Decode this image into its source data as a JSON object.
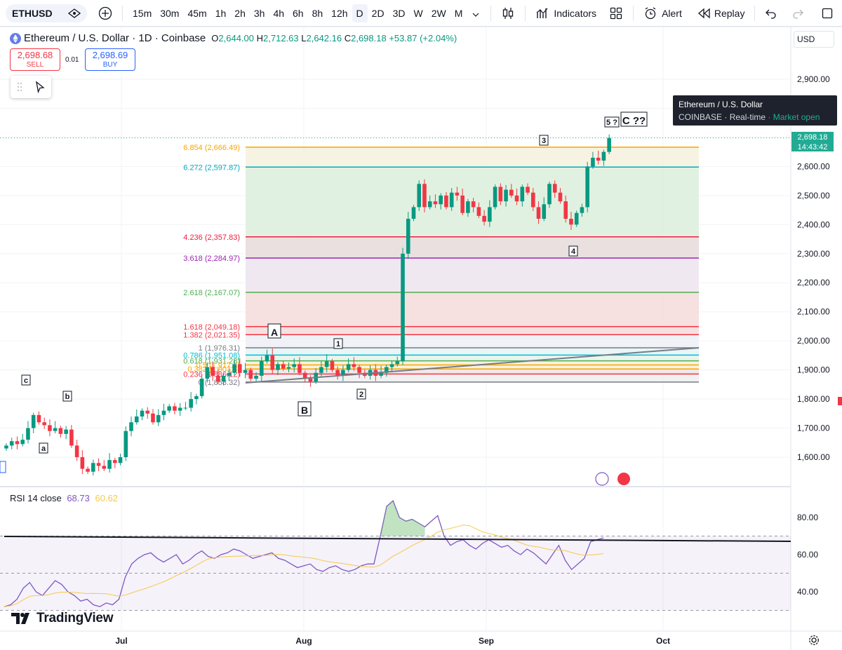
{
  "toolbar": {
    "symbol": "ETHUSD",
    "intervals": [
      "15m",
      "30m",
      "45m",
      "1h",
      "2h",
      "3h",
      "4h",
      "6h",
      "8h",
      "12h",
      "D",
      "2D",
      "3D",
      "W",
      "2W",
      "M"
    ],
    "active_interval": "D",
    "indicators_label": "Indicators",
    "alert_label": "Alert",
    "replay_label": "Replay"
  },
  "legend": {
    "title": "Ethereum / U.S. Dollar · 1D · Coinbase",
    "o_label": "O",
    "o": "2,644.00",
    "h_label": "H",
    "h": "2,712.63",
    "l_label": "L",
    "l": "2,642.16",
    "c_label": "C",
    "c": "2,698.18",
    "change": "+53.87 (+2.04%)"
  },
  "trade": {
    "sell_price": "2,698.68",
    "sell_label": "SELL",
    "spread": "0.01",
    "buy_price": "2,698.69",
    "buy_label": "BUY"
  },
  "tooltip": {
    "title": "Ethereum / U.S. Dollar",
    "exchange": "COINBASE",
    "feed": "Real-time",
    "status": "Market open"
  },
  "price_axis": {
    "currency": "USD",
    "labels": [
      "2,900.00",
      "2,800.00",
      "2,700.00",
      "2,600.00",
      "2,500.00",
      "2,400.00",
      "2,300.00",
      "2,200.00",
      "2,100.00",
      "2,000.00",
      "1,900.00",
      "1,800.00",
      "1,700.00",
      "1,600.00"
    ],
    "last_price": "2,698.18",
    "countdown": "14:43:42"
  },
  "time_axis": {
    "labels": [
      "Jul",
      "Aug",
      "Sep",
      "Oct"
    ]
  },
  "fib_levels": [
    {
      "label": "6.854 (2,666.49)",
      "color": "#f7a600"
    },
    {
      "label": "6.272 (2,597.87)",
      "color": "#00acc1"
    },
    {
      "label": "4.236 (2,357.83)",
      "color": "#e91e3e"
    },
    {
      "label": "3.618 (2,284.97)",
      "color": "#9c27b0"
    },
    {
      "label": "2.618 (2,167.07)",
      "color": "#4caf50"
    },
    {
      "label": "1.618 (2,049.18)",
      "color": "#f23645"
    },
    {
      "label": "1.382 (2,021.35)",
      "color": "#f23645"
    },
    {
      "label": "1 (1,976.31)",
      "color": "#787b86"
    },
    {
      "label": "0.786 (1,951.08)",
      "color": "#00bcd4"
    },
    {
      "label": "0.618 (1,931.28)",
      "color": "#4caf50"
    },
    {
      "label": "0.5 (1,917.3)",
      "color": "#f7a600"
    },
    {
      "label": "0.382 (1,903.3)",
      "color": "#f7a600"
    },
    {
      "label": "0.236 (1,886.12)",
      "color": "#f23645"
    },
    {
      "label": "0 (1,858.32)",
      "color": "#787b86"
    }
  ],
  "wave_labels": {
    "w1": "1",
    "w2": "2",
    "w3": "3",
    "w4": "4",
    "w5": "5 ?",
    "a_small": "a",
    "b_small": "b",
    "c_small": "c",
    "A": "A",
    "B": "B",
    "C": "C ??"
  },
  "rsi": {
    "title": "RSI 14 close",
    "value": "68.73",
    "ma_value": "60.62",
    "axis_labels": [
      "80.00",
      "60.00",
      "40.00"
    ]
  },
  "branding": {
    "logo_text": "TradingView"
  },
  "colors": {
    "up": "#089981",
    "down": "#f23645",
    "rsi": "#7e57c2",
    "rsi_ma": "#f7c94a"
  }
}
